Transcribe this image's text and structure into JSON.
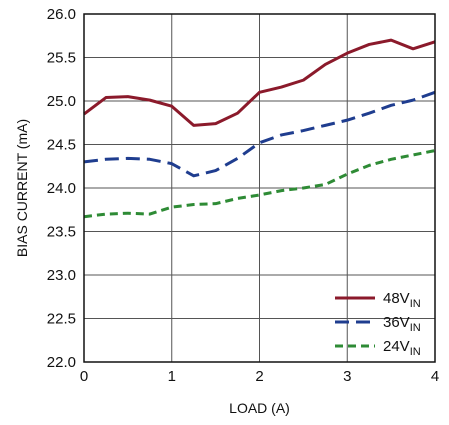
{
  "chart_data": {
    "type": "line",
    "title": "",
    "xlabel": "LOAD (A)",
    "ylabel": "BIAS CURRENT (mA)",
    "xlim": [
      0,
      4
    ],
    "ylim": [
      22.0,
      26.0
    ],
    "xticks": [
      "0",
      "1",
      "2",
      "3",
      "4"
    ],
    "yticks": [
      "22.0",
      "22.5",
      "23.0",
      "23.5",
      "24.0",
      "24.5",
      "25.0",
      "25.5",
      "26.0"
    ],
    "grid": true,
    "legend_position": "bottom-right",
    "series": [
      {
        "name": "48V",
        "name_sub": "IN",
        "color": "#8b1a2b",
        "dash": "solid",
        "x": [
          0,
          0.25,
          0.5,
          0.75,
          1.0,
          1.25,
          1.5,
          1.75,
          2.0,
          2.25,
          2.5,
          2.75,
          3.0,
          3.25,
          3.5,
          3.75,
          4.0
        ],
        "y": [
          24.85,
          25.04,
          25.05,
          25.01,
          24.94,
          24.72,
          24.74,
          24.86,
          25.1,
          25.16,
          25.24,
          25.42,
          25.55,
          25.65,
          25.7,
          25.6,
          25.68
        ]
      },
      {
        "name": "36V",
        "name_sub": "IN",
        "color": "#1f3d8f",
        "dash": "long-dash",
        "x": [
          0,
          0.25,
          0.5,
          0.75,
          1.0,
          1.25,
          1.5,
          1.75,
          2.0,
          2.25,
          2.5,
          2.75,
          3.0,
          3.25,
          3.5,
          3.75,
          4.0
        ],
        "y": [
          24.3,
          24.33,
          24.34,
          24.33,
          24.28,
          24.14,
          24.2,
          24.34,
          24.52,
          24.61,
          24.66,
          24.72,
          24.78,
          24.86,
          24.95,
          25.01,
          25.1
        ]
      },
      {
        "name": "24V",
        "name_sub": "IN",
        "color": "#2e8b35",
        "dash": "short-dash",
        "x": [
          0,
          0.25,
          0.5,
          0.75,
          1.0,
          1.25,
          1.5,
          1.75,
          2.0,
          2.25,
          2.5,
          2.75,
          3.0,
          3.25,
          3.5,
          3.75,
          4.0
        ],
        "y": [
          23.67,
          23.7,
          23.71,
          23.7,
          23.78,
          23.81,
          23.82,
          23.88,
          23.92,
          23.97,
          24.0,
          24.04,
          24.16,
          24.26,
          24.33,
          24.38,
          24.43
        ]
      }
    ]
  }
}
